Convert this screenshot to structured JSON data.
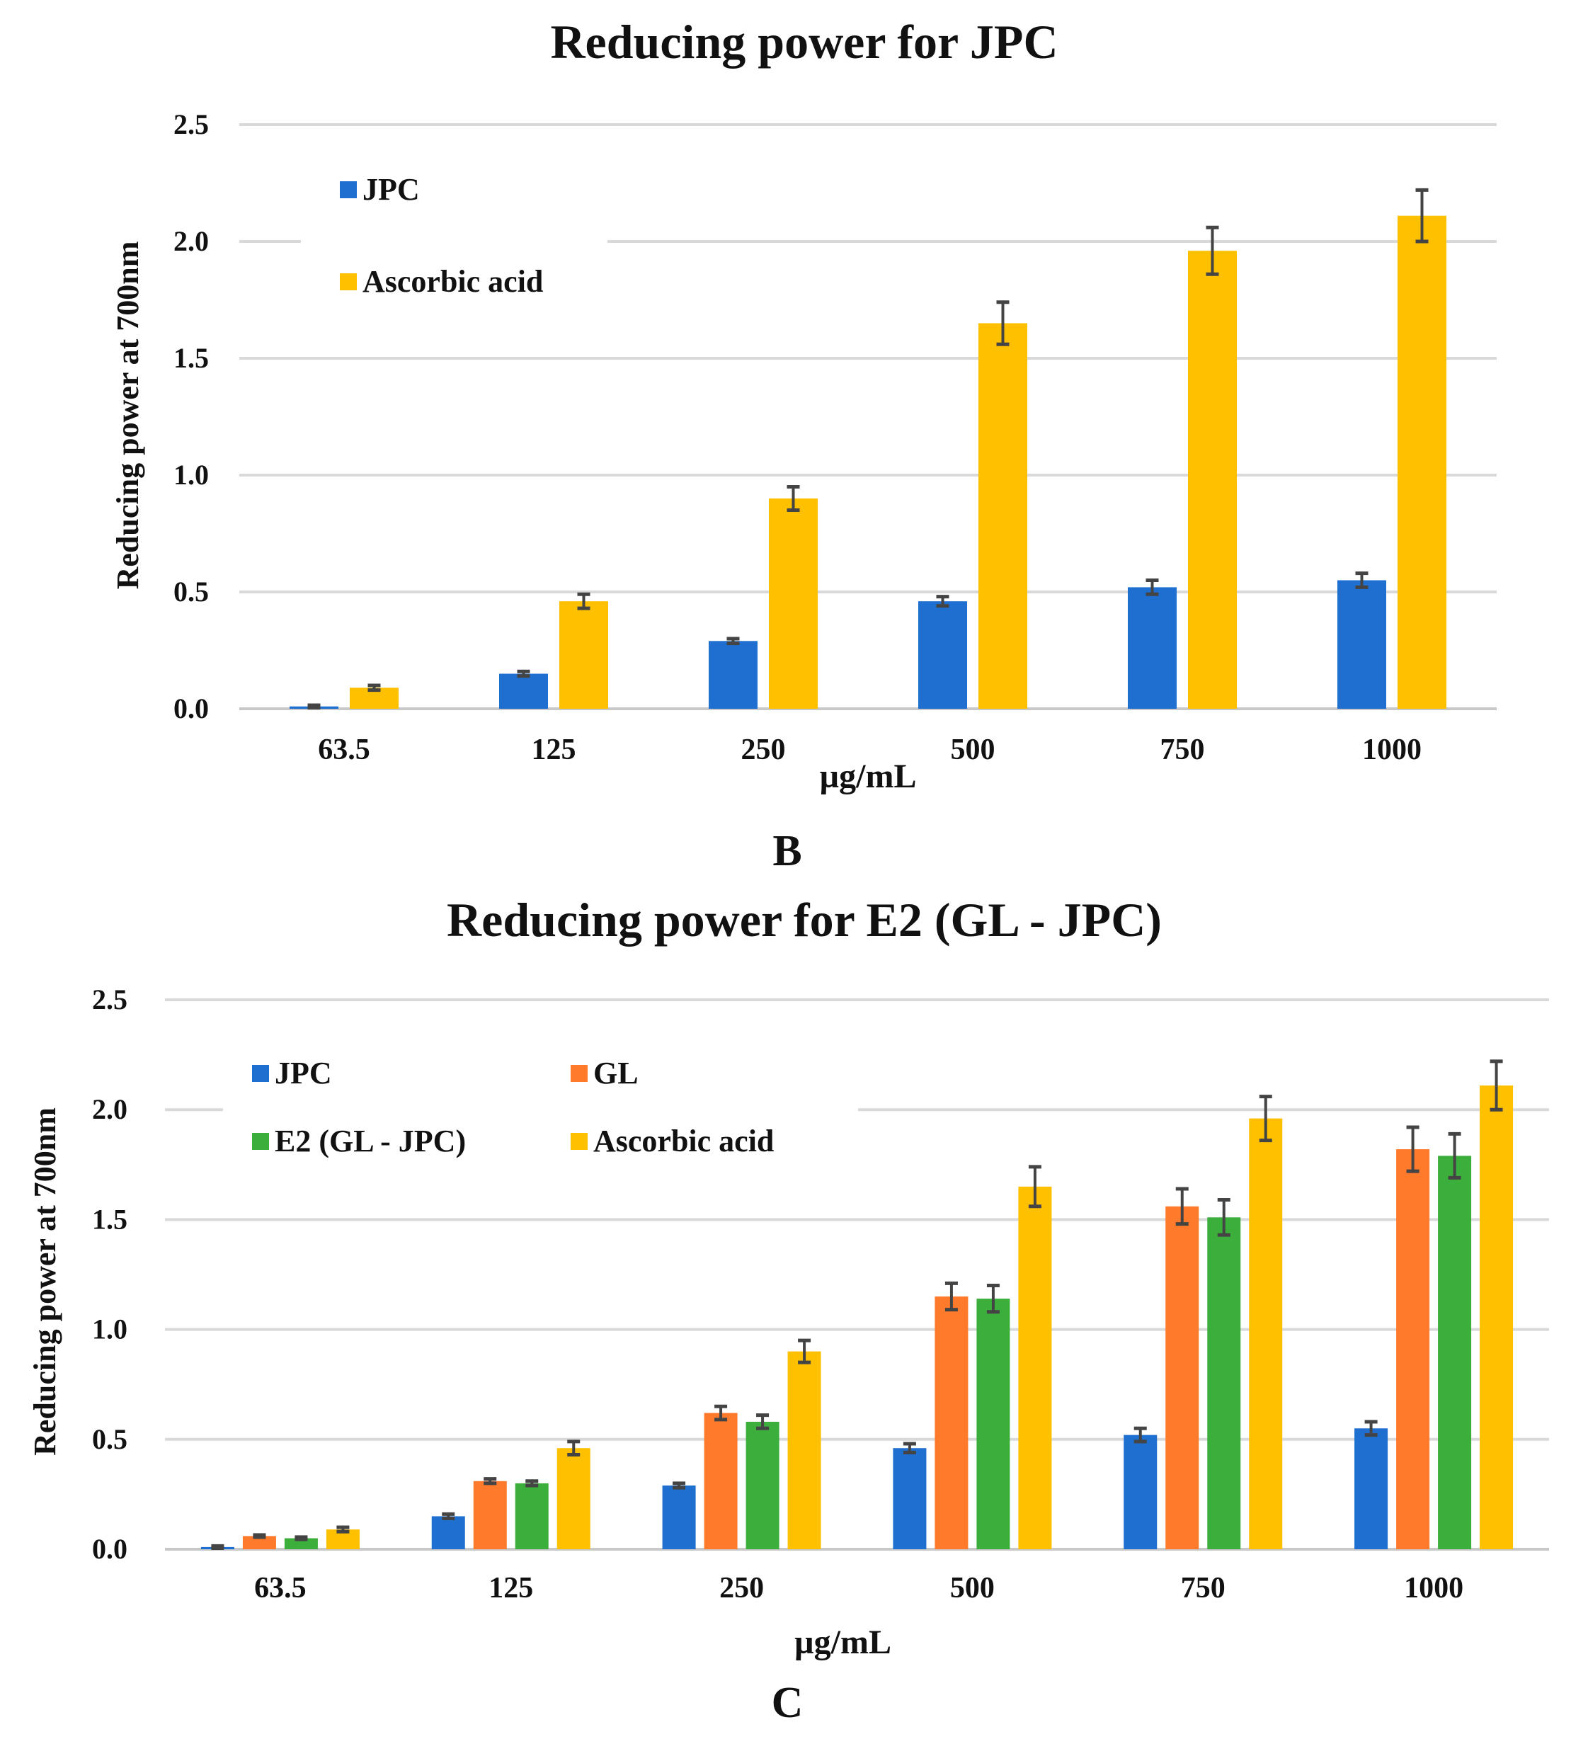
{
  "chart_data": [
    {
      "type": "bar",
      "title": "Reducing power for JPC",
      "panel_label": "B",
      "xlabel": "µg/mL",
      "ylabel": "Reducing power at 700nm",
      "ylim": [
        0,
        2.5
      ],
      "yticks": [
        "0.0",
        "0.5",
        "1.0",
        "1.5",
        "2.0",
        "2.5"
      ],
      "grid": true,
      "legend_position": "top-left",
      "categories": [
        "63.5",
        "125",
        "250",
        "500",
        "750",
        "1000"
      ],
      "series": [
        {
          "name": "JPC",
          "color": "#1f6fd0",
          "values": [
            0.01,
            0.15,
            0.29,
            0.46,
            0.52,
            0.55
          ],
          "errors": [
            0.005,
            0.01,
            0.01,
            0.02,
            0.03,
            0.03
          ]
        },
        {
          "name": "Ascorbic acid",
          "color": "#ffc000",
          "values": [
            0.09,
            0.46,
            0.9,
            1.65,
            1.96,
            2.11
          ],
          "errors": [
            0.01,
            0.03,
            0.05,
            0.09,
            0.1,
            0.11
          ]
        }
      ]
    },
    {
      "type": "bar",
      "title": "Reducing power for E2 (GL - JPC)",
      "panel_label": "C",
      "xlabel": "µg/mL",
      "ylabel": "Reducing power at 700nm",
      "ylim": [
        0,
        2.5
      ],
      "yticks": [
        "0.0",
        "0.5",
        "1.0",
        "1.5",
        "2.0",
        "2.5"
      ],
      "grid": true,
      "legend_position": "top-left",
      "categories": [
        "63.5",
        "125",
        "250",
        "500",
        "750",
        "1000"
      ],
      "series": [
        {
          "name": "JPC",
          "color": "#1f6fd0",
          "values": [
            0.01,
            0.15,
            0.29,
            0.46,
            0.52,
            0.55
          ],
          "errors": [
            0.005,
            0.01,
            0.01,
            0.02,
            0.03,
            0.03
          ]
        },
        {
          "name": "GL",
          "color": "#ff7a2a",
          "values": [
            0.06,
            0.31,
            0.62,
            1.15,
            1.56,
            1.82
          ],
          "errors": [
            0.005,
            0.01,
            0.03,
            0.06,
            0.08,
            0.1
          ]
        },
        {
          "name": "E2 (GL - JPC)",
          "color": "#3cae3c",
          "values": [
            0.05,
            0.3,
            0.58,
            1.14,
            1.51,
            1.79
          ],
          "errors": [
            0.005,
            0.01,
            0.03,
            0.06,
            0.08,
            0.1
          ]
        },
        {
          "name": "Ascorbic acid",
          "color": "#ffc000",
          "values": [
            0.09,
            0.46,
            0.9,
            1.65,
            1.96,
            2.11
          ],
          "errors": [
            0.01,
            0.03,
            0.05,
            0.09,
            0.1,
            0.11
          ]
        }
      ]
    }
  ]
}
